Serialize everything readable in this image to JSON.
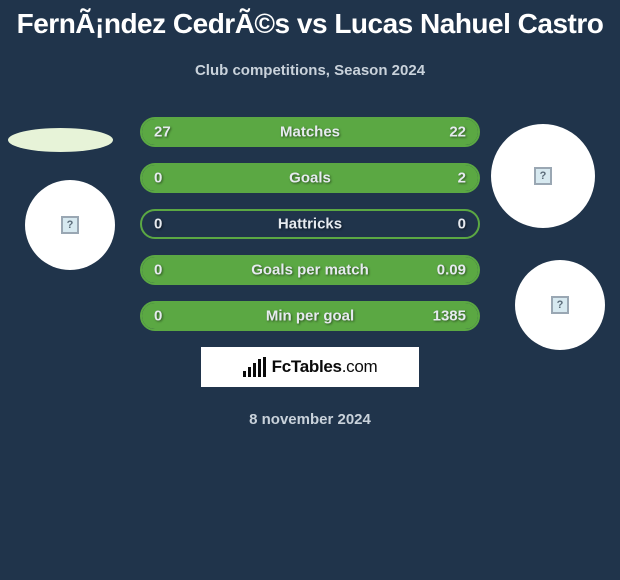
{
  "colors": {
    "background": "#20344b",
    "bar_border": "#5ba843",
    "bar_fill": "#5ba843",
    "title_color": "#ffffff",
    "subtitle_color": "#c9d2db",
    "bar_text_color": "#e6eaef",
    "circle_bg": "#ffffff",
    "ellipse_bg": "#e7f3d8"
  },
  "typography": {
    "title_fontsize": 28,
    "subtitle_fontsize": 15,
    "bar_fontsize": 15,
    "date_fontsize": 15
  },
  "title": "FernÃ¡ndez CedrÃ©s vs Lucas Nahuel Castro",
  "subtitle": "Club competitions, Season 2024",
  "bars": [
    {
      "label": "Matches",
      "left": "27",
      "right": "22",
      "left_pct": 55,
      "right_pct": 45
    },
    {
      "label": "Goals",
      "left": "0",
      "right": "2",
      "left_pct": 0,
      "right_pct": 100
    },
    {
      "label": "Hattricks",
      "left": "0",
      "right": "0",
      "left_pct": 0,
      "right_pct": 0
    },
    {
      "label": "Goals per match",
      "left": "0",
      "right": "0.09",
      "left_pct": 0,
      "right_pct": 100
    },
    {
      "label": "Min per goal",
      "left": "0",
      "right": "1385",
      "left_pct": 0,
      "right_pct": 100
    }
  ],
  "brand": {
    "name": "FcTables",
    "domain": ".com"
  },
  "date": "8 november 2024",
  "placeholder_glyph": "?"
}
